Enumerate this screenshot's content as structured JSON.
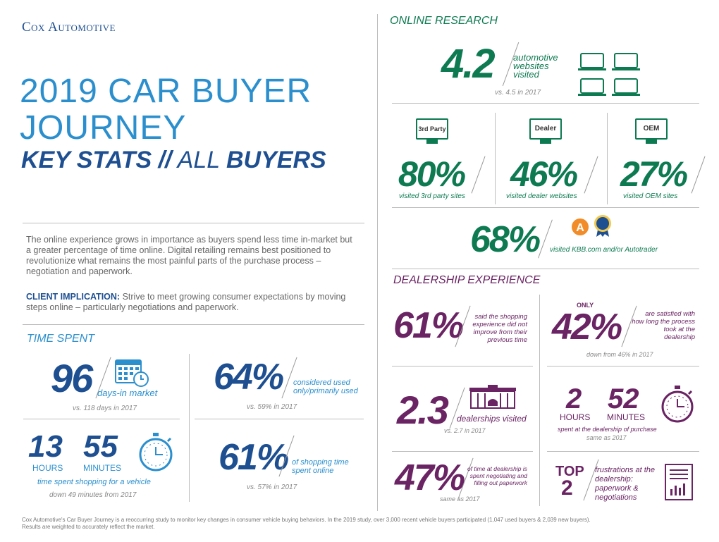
{
  "brand": "Cox Automotive",
  "title": {
    "line1": "2019 CAR BUYER",
    "line2": "JOURNEY",
    "line3a": "KEY STATS //",
    "line3b": " ALL ",
    "line3c": "BUYERS"
  },
  "intro": "The online experience grows in importance as buyers spend less time in-market but a greater percentage of time online. Digital retailing remains best positioned to revolutionize what remains the most painful parts of the purchase process – negotiation and paperwork.",
  "implication": {
    "label": "CLIENT IMPLICATION:",
    "text": " Strive to meet growing consumer expectations by moving steps online – particularly negotiations and paperwork."
  },
  "time_spent": {
    "heading": "TIME SPENT",
    "days": {
      "value": "96",
      "label": "days-in market",
      "note": "vs. 118 days in 2017"
    },
    "used": {
      "value": "64%",
      "label": "considered used only/primarily used",
      "note": "vs. 59% in 2017"
    },
    "shopping": {
      "hours": "13",
      "hours_label": "HOURS",
      "minutes": "55",
      "minutes_label": "MINUTES",
      "label": "time spent shopping for a vehicle",
      "note": "down 49 minutes from 2017"
    },
    "online": {
      "value": "61%",
      "label": "of shopping time spent online",
      "note": "vs. 57% in 2017"
    }
  },
  "online_research": {
    "heading": "ONLINE RESEARCH",
    "websites": {
      "value": "4.2",
      "label": "automotive websites visited",
      "note": "vs. 4.5 in 2017"
    },
    "third_party": {
      "icon_label": "3rd Party",
      "value": "80%",
      "label": "visited 3rd party sites"
    },
    "dealer": {
      "icon_label": "Dealer",
      "value": "46%",
      "label": "visited dealer websites"
    },
    "oem": {
      "icon_label": "OEM",
      "value": "27%",
      "label": "visited OEM sites"
    },
    "kbb": {
      "value": "68%",
      "label": "visited KBB.com and/or Autotrader"
    }
  },
  "dealership": {
    "heading": "DEALERSHIP EXPERIENCE",
    "not_improve": {
      "value": "61%",
      "label": "said the shopping experience did not improve from their previous time"
    },
    "satisfied": {
      "prefix": "ONLY",
      "value": "42%",
      "label": "are satisfied with how long the process took at the dealership",
      "note": "down from 46% in 2017"
    },
    "dealerships": {
      "value": "2.3",
      "label": "dealerships visited",
      "note": "vs. 2.7 in 2017"
    },
    "at_dealer": {
      "hours": "2",
      "hours_label": "HOURS",
      "minutes": "52",
      "minutes_label": "MINUTES",
      "label": "spent at the dealership of purchase",
      "note": "same as 2017"
    },
    "negotiating": {
      "value": "47%",
      "label": "of time at dealership is spent negotiating and filling out paperwork",
      "note": "same as 2017"
    },
    "top": {
      "line1": "TOP",
      "line2": "2",
      "label": "frustrations at the dealership: paperwork & negotiations"
    }
  },
  "footer": "Cox Automotive's Car Buyer Journey is a reoccurring study to monitor key changes in consumer vehicle buying behaviors. In the 2019 study, over 3,000 recent vehicle buyers participated (1,047 used buyers & 2,039 new buyers). Results are weighted to accurately reflect the market.",
  "colors": {
    "blue": "#2b8fce",
    "navy": "#1d4f91",
    "green": "#0d7a52",
    "purple": "#6a2363"
  }
}
